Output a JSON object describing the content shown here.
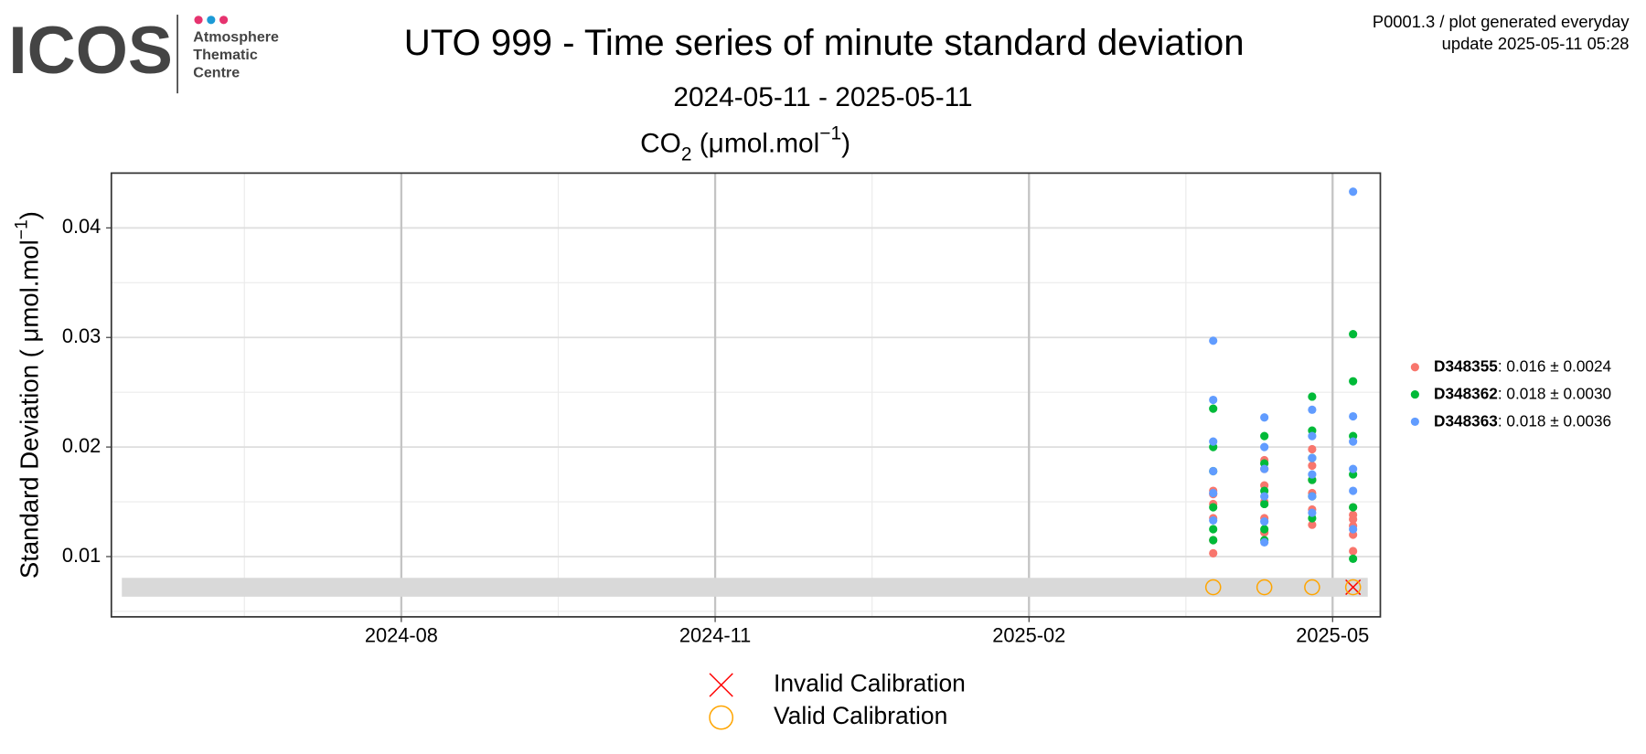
{
  "header": {
    "logo": "ICOS",
    "logo_lines": [
      "Atmosphere",
      "Thematic",
      "Centre"
    ],
    "info": [
      "P0001.3 / plot generated everyday",
      "update  2025-05-11 05:28"
    ]
  },
  "chart_data": {
    "type": "scatter",
    "title": "UTO 999 - Time series of minute standard deviation",
    "subtitle": "2024-05-11 - 2025-05-11",
    "panel_title": [
      {
        "text": "CO"
      },
      {
        "text": "2",
        "shift": "sub"
      },
      {
        "text": " (μmol.mol"
      },
      {
        "text": "−1",
        "shift": "super"
      },
      {
        "text": ")"
      }
    ],
    "y_label": [
      {
        "text": "Standard Deviation ( μmol.mol"
      },
      {
        "text": "−1",
        "shift": "super"
      },
      {
        "text": ")"
      }
    ],
    "xlim": [
      "2024-05-08",
      "2025-05-15"
    ],
    "xticks": [
      {
        "value": "2024-08-01",
        "label": "2024-08"
      },
      {
        "value": "2024-11-01",
        "label": "2024-11"
      },
      {
        "value": "2025-02-01",
        "label": "2025-02"
      },
      {
        "value": "2025-05-01",
        "label": "2025-05"
      }
    ],
    "ylim": [
      0.0045,
      0.045
    ],
    "yticks": [
      0.01,
      0.02,
      0.03,
      0.04
    ],
    "grid": true,
    "series": [
      {
        "name": "D348355",
        "summary": ": 0.016 ± 0.0024",
        "color": "#f8766d",
        "x": [
          "2025-03-27",
          "2025-03-27",
          "2025-03-27",
          "2025-03-27",
          "2025-03-27",
          "2025-03-27",
          "2025-04-11",
          "2025-04-11",
          "2025-04-11",
          "2025-04-11",
          "2025-04-11",
          "2025-04-11",
          "2025-04-25",
          "2025-04-25",
          "2025-04-25",
          "2025-04-25",
          "2025-04-25",
          "2025-04-25",
          "2025-05-07",
          "2025-05-07",
          "2025-05-07",
          "2025-05-07",
          "2025-05-07",
          "2025-05-07"
        ],
        "values": [
          0.0103,
          0.0115,
          0.0135,
          0.0148,
          0.0157,
          0.016,
          0.0122,
          0.0135,
          0.015,
          0.0165,
          0.018,
          0.0188,
          0.0129,
          0.0143,
          0.0158,
          0.017,
          0.0183,
          0.0198,
          0.0105,
          0.012,
          0.0128,
          0.0134,
          0.0138,
          0.0145
        ]
      },
      {
        "name": "D348362",
        "summary": ": 0.018 ± 0.0030",
        "color": "#00ba38",
        "x": [
          "2025-03-27",
          "2025-03-27",
          "2025-03-27",
          "2025-03-27",
          "2025-03-27",
          "2025-03-27",
          "2025-04-11",
          "2025-04-11",
          "2025-04-11",
          "2025-04-11",
          "2025-04-11",
          "2025-04-11",
          "2025-04-25",
          "2025-04-25",
          "2025-04-25",
          "2025-04-25",
          "2025-04-25",
          "2025-04-25",
          "2025-05-07",
          "2025-05-07",
          "2025-05-07",
          "2025-05-07",
          "2025-05-07",
          "2025-05-07"
        ],
        "values": [
          0.0115,
          0.0125,
          0.0145,
          0.0178,
          0.02,
          0.0235,
          0.0115,
          0.0125,
          0.0148,
          0.016,
          0.0185,
          0.021,
          0.0135,
          0.0155,
          0.017,
          0.019,
          0.0215,
          0.0246,
          0.0098,
          0.0145,
          0.0175,
          0.021,
          0.026,
          0.0303
        ]
      },
      {
        "name": "D348363",
        "summary": ": 0.018 ± 0.0036",
        "color": "#619cff",
        "x": [
          "2025-03-27",
          "2025-03-27",
          "2025-03-27",
          "2025-03-27",
          "2025-03-27",
          "2025-03-27",
          "2025-04-11",
          "2025-04-11",
          "2025-04-11",
          "2025-04-11",
          "2025-04-11",
          "2025-04-11",
          "2025-04-25",
          "2025-04-25",
          "2025-04-25",
          "2025-04-25",
          "2025-04-25",
          "2025-04-25",
          "2025-05-07",
          "2025-05-07",
          "2025-05-07",
          "2025-05-07",
          "2025-05-07",
          "2025-05-07"
        ],
        "values": [
          0.0133,
          0.0158,
          0.0178,
          0.0205,
          0.0243,
          0.0297,
          0.0113,
          0.0132,
          0.0155,
          0.018,
          0.02,
          0.0227,
          0.014,
          0.0155,
          0.0175,
          0.019,
          0.021,
          0.0234,
          0.0125,
          0.016,
          0.018,
          0.0205,
          0.0228,
          0.0433
        ]
      }
    ],
    "calibrations": [
      {
        "name": "Invalid Calibration",
        "marker": "cross",
        "color": "#ff0000",
        "x": [
          "2025-05-07"
        ],
        "values": [
          0.0072
        ]
      },
      {
        "name": "Valid Calibration",
        "marker": "circle",
        "color": "#ffa500",
        "x": [
          "2025-03-27",
          "2025-04-11",
          "2025-04-25",
          "2025-05-07"
        ],
        "values": [
          0.0072,
          0.0072,
          0.0072,
          0.0072
        ]
      }
    ]
  }
}
